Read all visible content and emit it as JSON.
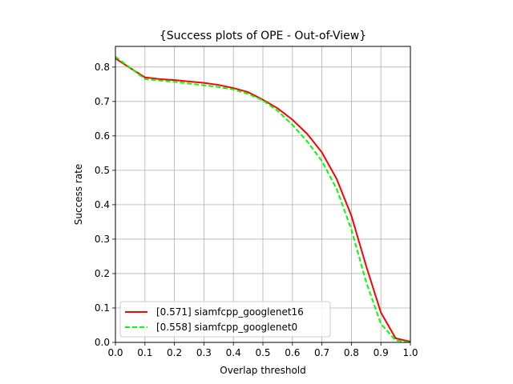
{
  "chart_data": {
    "type": "line",
    "title": "{Success plots of OPE - Out-of-View}",
    "xlabel": "Overlap threshold",
    "ylabel": "Success rate",
    "xlim": [
      0,
      1
    ],
    "ylim": [
      0,
      0.86
    ],
    "xticks": [
      "0.0",
      "0.1",
      "0.2",
      "0.3",
      "0.4",
      "0.5",
      "0.6",
      "0.7",
      "0.8",
      "0.9",
      "1.0"
    ],
    "yticks": [
      "0.0",
      "0.1",
      "0.2",
      "0.3",
      "0.4",
      "0.5",
      "0.6",
      "0.7",
      "0.8"
    ],
    "grid": true,
    "legend_position": "lower-left",
    "x": [
      0.0,
      0.05,
      0.1,
      0.15,
      0.2,
      0.25,
      0.3,
      0.35,
      0.4,
      0.45,
      0.5,
      0.55,
      0.6,
      0.65,
      0.7,
      0.75,
      0.8,
      0.85,
      0.9,
      0.95,
      1.0
    ],
    "series": [
      {
        "name": "[0.571] siamfcpp_googlenet16",
        "color": "#ff0000",
        "style": "solid",
        "values": [
          0.825,
          0.797,
          0.77,
          0.765,
          0.762,
          0.758,
          0.754,
          0.748,
          0.739,
          0.727,
          0.705,
          0.68,
          0.647,
          0.606,
          0.552,
          0.475,
          0.368,
          0.222,
          0.087,
          0.012,
          0.002
        ]
      },
      {
        "name": "[0.558] siamfcpp_googlenet0",
        "color": "#00ff00",
        "style": "dashed",
        "values": [
          0.83,
          0.798,
          0.765,
          0.761,
          0.757,
          0.752,
          0.747,
          0.742,
          0.735,
          0.722,
          0.703,
          0.673,
          0.632,
          0.584,
          0.527,
          0.446,
          0.328,
          0.176,
          0.054,
          0.006,
          0.0
        ]
      }
    ]
  }
}
